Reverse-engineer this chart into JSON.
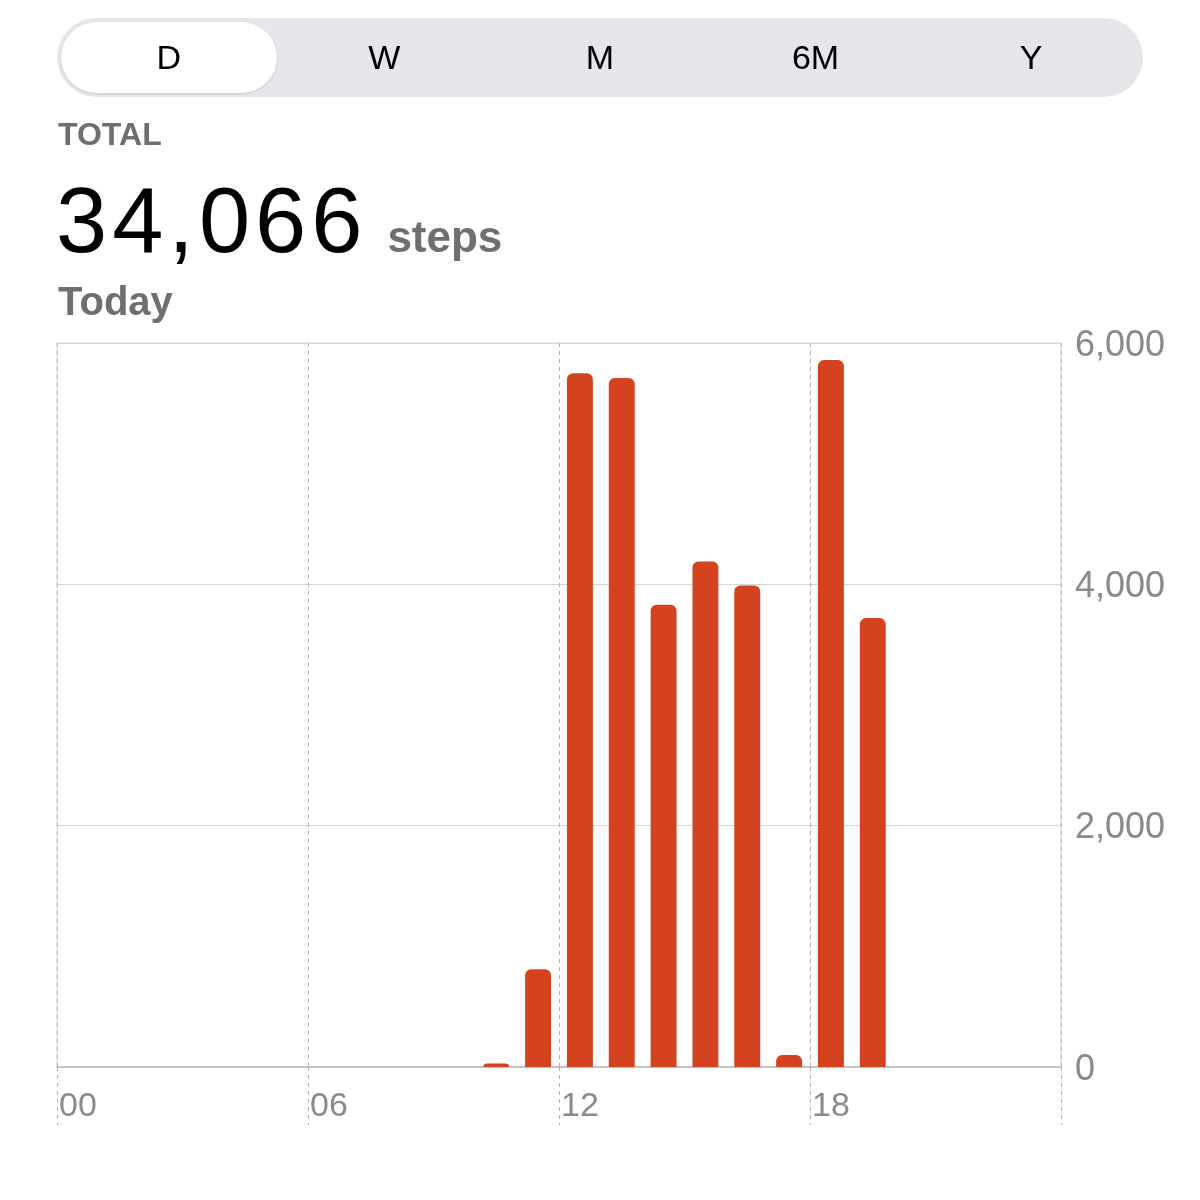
{
  "chart_data": {
    "type": "bar",
    "title": "34,066",
    "subtitle": "Today",
    "annotations": [
      "D",
      "W",
      "M",
      "6M",
      "Y",
      "TOTAL",
      "steps"
    ],
    "categories": [
      "00",
      null,
      null,
      null,
      null,
      null,
      "06",
      null,
      null,
      null,
      null,
      null,
      "12",
      null,
      null,
      null,
      null,
      null,
      "18",
      null,
      null,
      null,
      null,
      null
    ],
    "values": [
      null,
      null,
      null,
      null,
      null,
      null,
      null,
      null,
      null,
      null,
      30,
      810,
      5750,
      5710,
      3830,
      4190,
      3990,
      100,
      5860,
      3720,
      null,
      null,
      null,
      null
    ],
    "color": "#d4431f",
    "ylim": [
      0,
      6000
    ],
    "yticks": [
      0,
      {
        "value": 2000,
        "label": "2,000"
      },
      {
        "value": 4000,
        "label": "4,000"
      },
      {
        "value": 6000,
        "label": "6,000"
      }
    ],
    "grid": true
  }
}
